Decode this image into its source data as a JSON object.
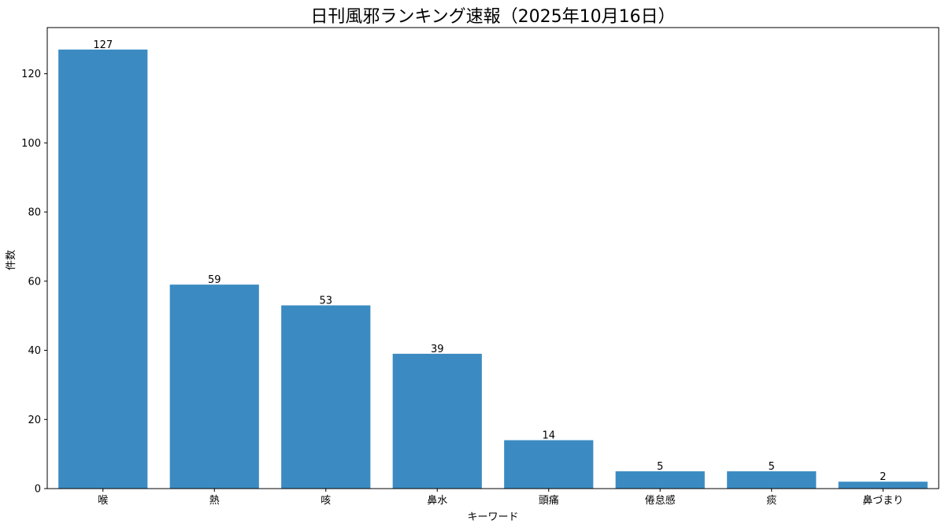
{
  "chart_data": {
    "type": "bar",
    "title": "日刊風邪ランキング速報（2025年10月16日）",
    "xlabel": "キーワード",
    "ylabel": "件数",
    "categories": [
      "喉",
      "熱",
      "咳",
      "鼻水",
      "頭痛",
      "倦怠感",
      "痰",
      "鼻づまり"
    ],
    "values": [
      127,
      59,
      53,
      39,
      14,
      5,
      5,
      2
    ],
    "ylim": [
      0,
      133.35
    ],
    "yticks": [
      0,
      20,
      40,
      60,
      80,
      100,
      120
    ],
    "bar_color": "#3b8bc2",
    "grid": false,
    "legend": false,
    "data_labels": true
  }
}
